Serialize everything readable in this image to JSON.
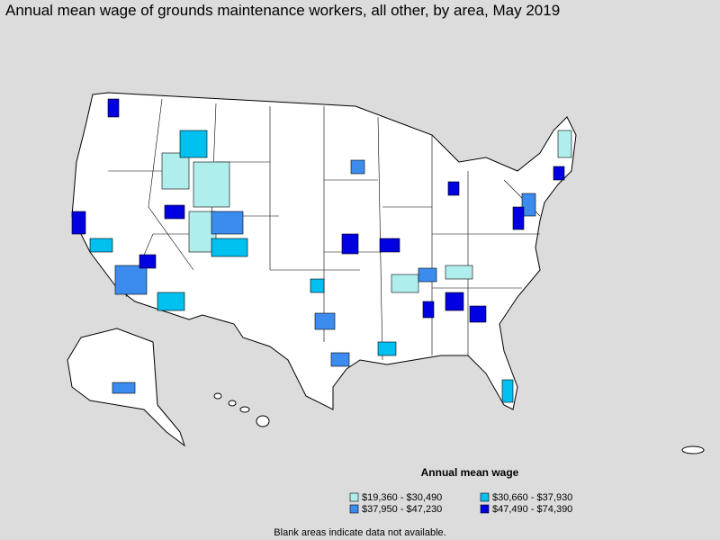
{
  "title": "Annual mean wage of grounds maintenance workers, all other, by area, May 2019",
  "legend": {
    "title": "Annual mean wage",
    "items": [
      {
        "label": "$19,360 - $30,490",
        "color": "#b0eeee"
      },
      {
        "label": "$30,660 - $37,930",
        "color": "#00c0f0"
      },
      {
        "label": "$37,950 - $47,230",
        "color": "#3c8cf0"
      },
      {
        "label": "$47,490 - $74,390",
        "color": "#0000e0"
      }
    ]
  },
  "note": "Blank areas indicate data not available."
}
